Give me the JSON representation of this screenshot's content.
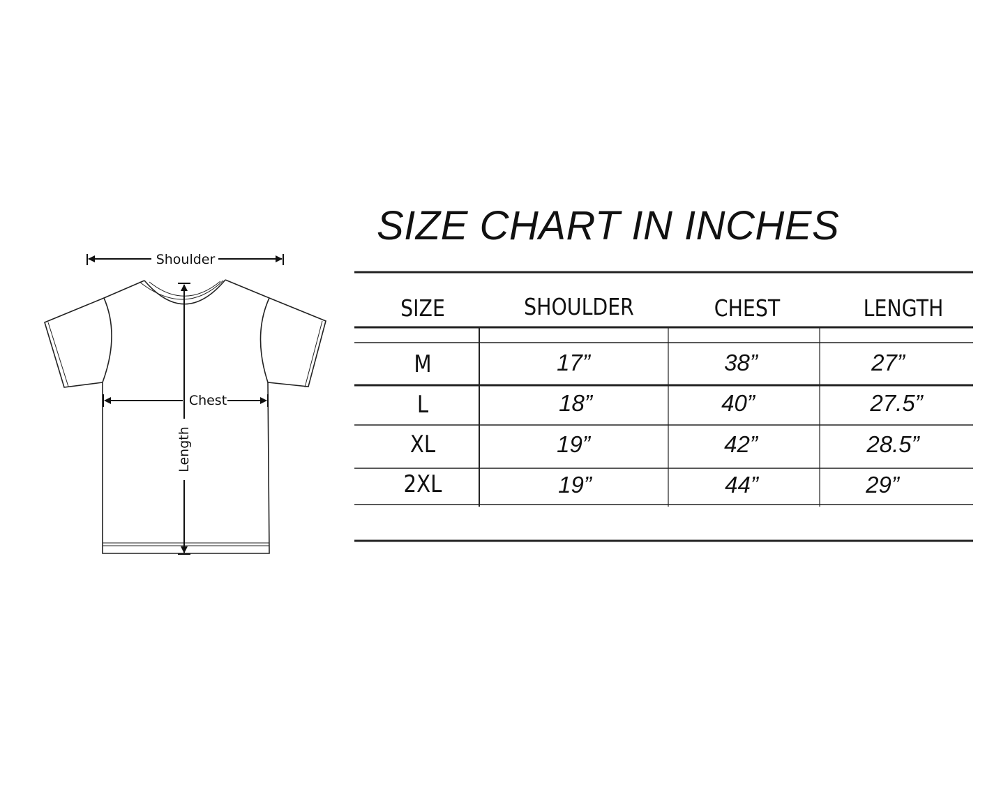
{
  "title": "SIZE CHART IN INCHES",
  "diagram": {
    "shoulder_label": "Shoulder",
    "chest_label": "Chest",
    "length_label": "Length",
    "icon": "t-shirt-outline"
  },
  "table": {
    "headers": [
      "SIZE",
      "SHOULDER",
      "CHEST",
      "LENGTH"
    ],
    "rows": [
      {
        "size": "M",
        "shoulder": "17”",
        "chest": "38”",
        "length": "27”"
      },
      {
        "size": "L",
        "shoulder": "18”",
        "chest": "40”",
        "length": "27.5”"
      },
      {
        "size": "XL",
        "shoulder": "19”",
        "chest": "42”",
        "length": "28.5”"
      },
      {
        "size": "2XL",
        "shoulder": "19”",
        "chest": "44”",
        "length": "29”"
      }
    ]
  }
}
